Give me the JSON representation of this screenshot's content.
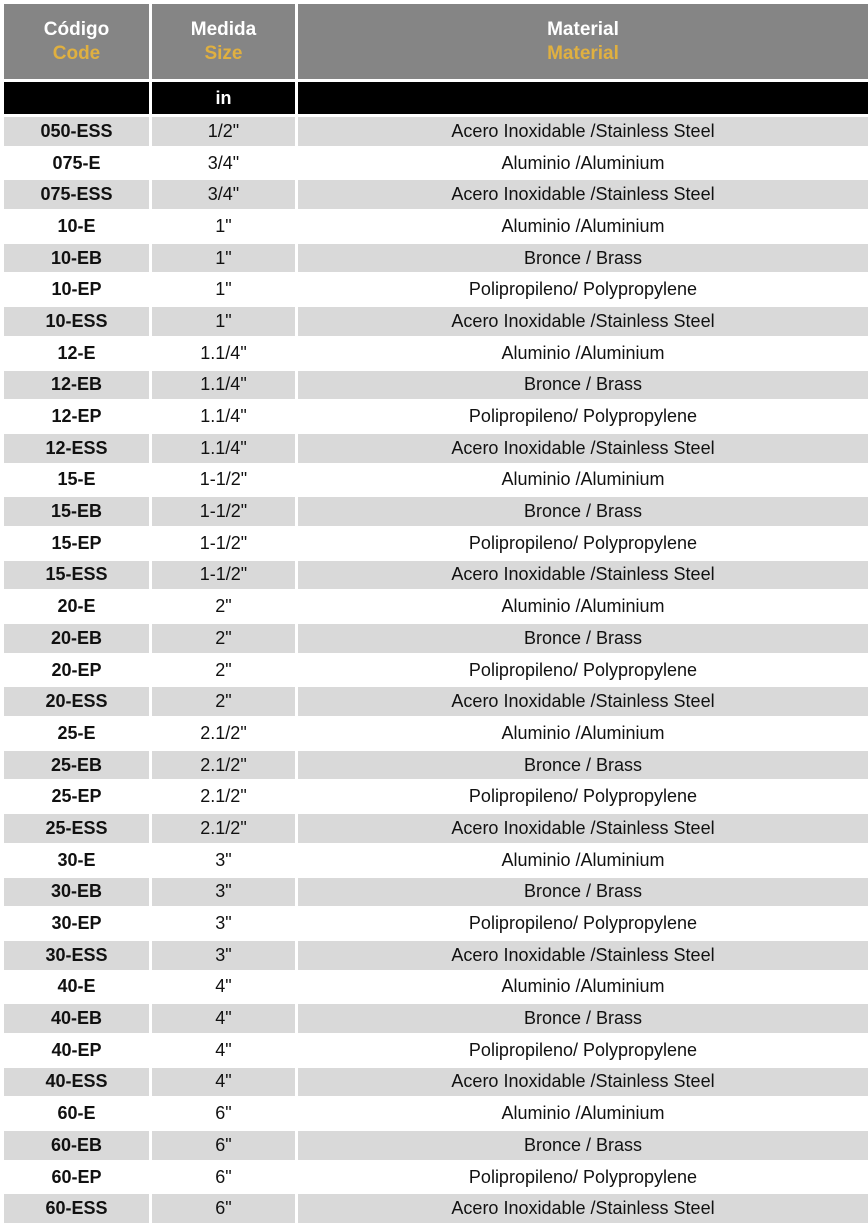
{
  "header": {
    "code": {
      "es": "Código",
      "en": "Code"
    },
    "size": {
      "es": "Medida",
      "en": "Size"
    },
    "material": {
      "es": "Material",
      "en": "Material"
    },
    "unit_code": "",
    "unit_size": "in",
    "unit_material": ""
  },
  "colors": {
    "header_bg": "#858585",
    "header_accent": "#e0b040",
    "subheader_bg": "#000000",
    "row_alt": "#d9d9d9"
  },
  "rows": [
    [
      "050-ESS",
      "1/2\"",
      "Acero Inoxidable /Stainless Steel"
    ],
    [
      "075-E",
      "3/4\"",
      "Aluminio /Aluminium"
    ],
    [
      "075-ESS",
      "3/4\"",
      "Acero Inoxidable /Stainless Steel"
    ],
    [
      "10-E",
      "1\"",
      "Aluminio /Aluminium"
    ],
    [
      "10-EB",
      "1\"",
      "Bronce / Brass"
    ],
    [
      "10-EP",
      "1\"",
      "Polipropileno/ Polypropylene"
    ],
    [
      "10-ESS",
      "1\"",
      "Acero Inoxidable /Stainless Steel"
    ],
    [
      "12-E",
      "1.1/4\"",
      "Aluminio /Aluminium"
    ],
    [
      "12-EB",
      "1.1/4\"",
      "Bronce / Brass"
    ],
    [
      "12-EP",
      "1.1/4\"",
      "Polipropileno/ Polypropylene"
    ],
    [
      "12-ESS",
      "1.1/4\"",
      "Acero Inoxidable /Stainless Steel"
    ],
    [
      "15-E",
      "1-1/2\"",
      "Aluminio /Aluminium"
    ],
    [
      "15-EB",
      "1-1/2\"",
      "Bronce / Brass"
    ],
    [
      "15-EP",
      "1-1/2\"",
      "Polipropileno/ Polypropylene"
    ],
    [
      "15-ESS",
      "1-1/2\"",
      "Acero Inoxidable /Stainless Steel"
    ],
    [
      "20-E",
      "2\"",
      "Aluminio /Aluminium"
    ],
    [
      "20-EB",
      "2\"",
      "Bronce / Brass"
    ],
    [
      "20-EP",
      "2\"",
      "Polipropileno/ Polypropylene"
    ],
    [
      "20-ESS",
      "2\"",
      "Acero Inoxidable /Stainless Steel"
    ],
    [
      "25-E",
      "2.1/2\"",
      "Aluminio /Aluminium"
    ],
    [
      "25-EB",
      "2.1/2\"",
      "Bronce / Brass"
    ],
    [
      "25-EP",
      "2.1/2\"",
      "Polipropileno/ Polypropylene"
    ],
    [
      "25-ESS",
      "2.1/2\"",
      "Acero Inoxidable /Stainless Steel"
    ],
    [
      "30-E",
      "3\"",
      "Aluminio /Aluminium"
    ],
    [
      "30-EB",
      "3\"",
      "Bronce / Brass"
    ],
    [
      "30-EP",
      "3\"",
      "Polipropileno/ Polypropylene"
    ],
    [
      "30-ESS",
      "3\"",
      "Acero Inoxidable /Stainless Steel"
    ],
    [
      "40-E",
      "4\"",
      "Aluminio /Aluminium"
    ],
    [
      "40-EB",
      "4\"",
      "Bronce / Brass"
    ],
    [
      "40-EP",
      "4\"",
      "Polipropileno/ Polypropylene"
    ],
    [
      "40-ESS",
      "4\"",
      "Acero Inoxidable /Stainless Steel"
    ],
    [
      "60-E",
      "6\"",
      "Aluminio /Aluminium"
    ],
    [
      "60-EB",
      "6\"",
      "Bronce / Brass"
    ],
    [
      "60-EP",
      "6\"",
      "Polipropileno/ Polypropylene"
    ],
    [
      "60-ESS",
      "6\"",
      "Acero Inoxidable /Stainless Steel"
    ]
  ]
}
